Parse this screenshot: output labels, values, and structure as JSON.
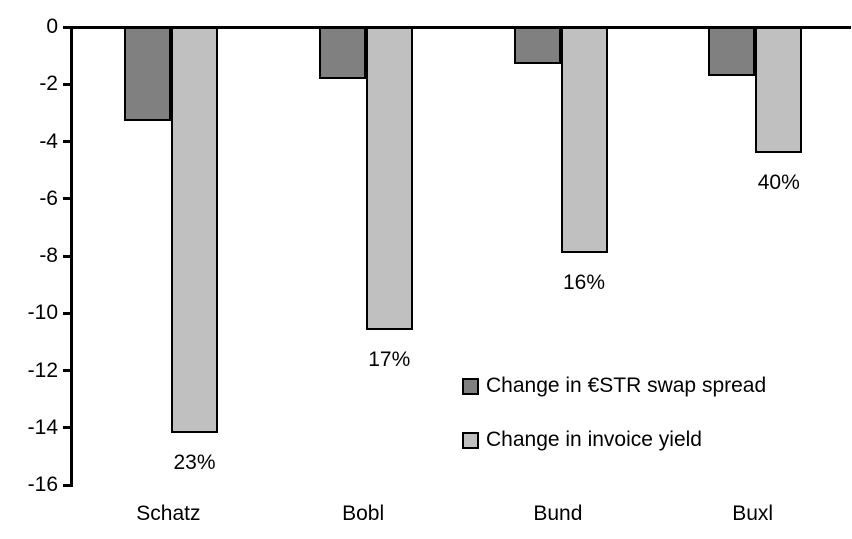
{
  "chart_data": {
    "type": "bar",
    "title": "",
    "xlabel": "",
    "ylabel": "",
    "categories": [
      "Schatz",
      "Bobl",
      "Bund",
      "Buxl"
    ],
    "series": [
      {
        "name": "Change in €STR swap spread",
        "color": "#808080",
        "values": [
          -3.3,
          -1.8,
          -1.3,
          -1.7
        ]
      },
      {
        "name": "Change in invoice yield",
        "color": "#c0c0c0",
        "values": [
          -14.2,
          -10.6,
          -7.9,
          -4.4
        ]
      }
    ],
    "bar_labels": {
      "series": "Change in invoice yield",
      "values": [
        "23%",
        "17%",
        "16%",
        "40%"
      ]
    },
    "yticks": [
      "0",
      "-2",
      "-4",
      "-6",
      "-8",
      "-10",
      "-12",
      "-14",
      "-16"
    ],
    "ytick_values": [
      0,
      -2,
      -4,
      -6,
      -8,
      -10,
      -12,
      -14,
      -16
    ],
    "ylim": [
      -16,
      0
    ],
    "grid": false,
    "legend_position": "inside-lower-right",
    "colors": {
      "axis": "#000000",
      "bar_border": "#000000",
      "text": "#000000",
      "background": "#ffffff"
    }
  }
}
